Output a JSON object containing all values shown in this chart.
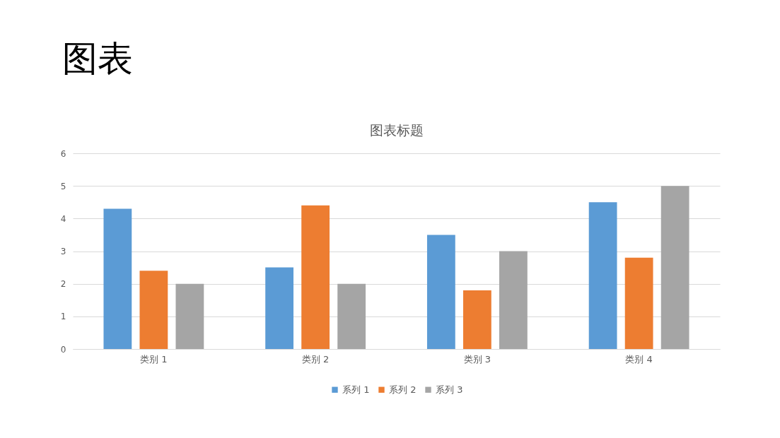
{
  "chart_data": {
    "type": "bar",
    "title": "图表",
    "subtitle": "图表标题",
    "categories": [
      "类别 1",
      "类别 2",
      "类别 3",
      "类别 4"
    ],
    "series": [
      {
        "name": "系列 1",
        "color": "#5b9bd5",
        "values": [
          4.3,
          2.5,
          3.5,
          4.5
        ]
      },
      {
        "name": "系列 2",
        "color": "#ed7d31",
        "values": [
          2.4,
          4.4,
          1.8,
          2.8
        ]
      },
      {
        "name": "系列 3",
        "color": "#a5a5a5",
        "values": [
          2,
          2,
          3,
          5
        ]
      }
    ],
    "ylim": [
      0,
      6
    ],
    "yticks": [
      0,
      1,
      2,
      3,
      4,
      5,
      6
    ],
    "grid": "y",
    "legend": "bottom"
  }
}
